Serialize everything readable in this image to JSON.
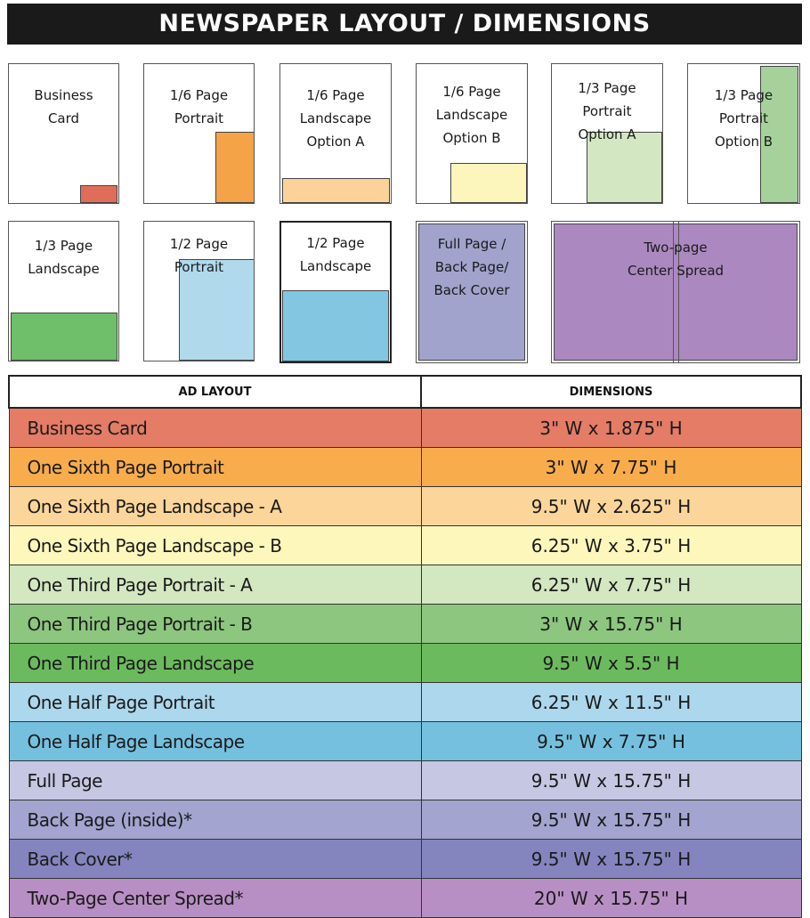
{
  "title": "NEWSPAPER LAYOUT / DIMENSIONS",
  "thumbnails": [
    {
      "label": "Business\nCard",
      "color": "#e06d5a"
    },
    {
      "label": "1/6 Page\nPortrait",
      "color": "#f4a347"
    },
    {
      "label": "1/6 Page\nLandscape\nOption A",
      "color": "#fbd39a"
    },
    {
      "label": "1/6 Page\nLandscape\nOption B",
      "color": "#fcf5bc"
    },
    {
      "label": "1/3 Page\nPortrait\nOption A",
      "color": "#d4e7c3"
    },
    {
      "label": "1/3 Page\nPortrait\nOption B",
      "color": "#a6d19b"
    },
    {
      "label": "1/3 Page\nLandscape",
      "color": "#6fbf6a"
    },
    {
      "label": "1/2 Page\nPortrait",
      "color": "#b0d9ec"
    },
    {
      "label": "1/2 Page\nLandscape",
      "color": "#82c6e2"
    },
    {
      "label": "Full Page /\nBack Page/\nBack Cover",
      "color": "#a2a3cc"
    },
    {
      "label": "Two-page\nCenter Spread",
      "color": "#ac88c1"
    }
  ],
  "table": {
    "headers": [
      "AD LAYOUT",
      "DIMENSIONS"
    ],
    "rows": [
      {
        "layout": "Business Card",
        "dims": "3\" W x 1.875\" H",
        "color": "#e47c66"
      },
      {
        "layout": "One Sixth Page Portrait",
        "dims": "3\" W x 7.75\" H",
        "color": "#f8ac4c"
      },
      {
        "layout": "One Sixth Page Landscape - A",
        "dims": "9.5\" W x 2.625\" H",
        "color": "#fcd59b"
      },
      {
        "layout": "One Sixth Page Landscape - B",
        "dims": "6.25\" W x 3.75\" H",
        "color": "#fdf7bc"
      },
      {
        "layout": "One Third Page Portrait - A",
        "dims": "6.25\" W x 7.75\" H",
        "color": "#d3e7c1"
      },
      {
        "layout": "One Third Page Portrait - B",
        "dims": "3\" W x 15.75\" H",
        "color": "#8dc67e"
      },
      {
        "layout": "One Third Page Landscape",
        "dims": "9.5\" W x 5.5\" H",
        "color": "#6cba5e"
      },
      {
        "layout": "One Half Page Portrait",
        "dims": "6.25\" W x 11.5\" H",
        "color": "#acd7ec"
      },
      {
        "layout": "One Half Page Landscape",
        "dims": "9.5\" W x 7.75\" H",
        "color": "#75c0df"
      },
      {
        "layout": "Full Page",
        "dims": "9.5\" W x 15.75\" H",
        "color": "#c6c7e3"
      },
      {
        "layout": "Back Page (inside)*",
        "dims": "9.5\" W x 15.75\" H",
        "color": "#a3a4cf"
      },
      {
        "layout": "Back Cover*",
        "dims": "9.5\" W x 15.75\" H",
        "color": "#8485bf"
      },
      {
        "layout": "Two-Page Center Spread*",
        "dims": "20\" W x 15.75\" H",
        "color": "#b88fc4"
      }
    ]
  }
}
